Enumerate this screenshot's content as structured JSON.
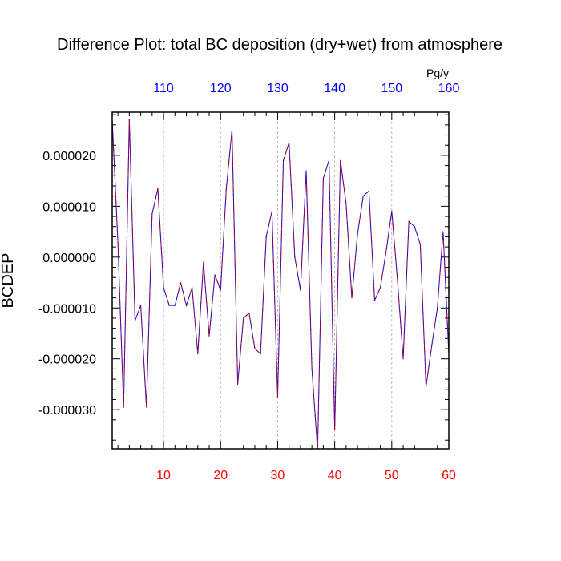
{
  "chart_data": {
    "type": "line",
    "title": "Difference Plot: total BC deposition (dry+wet) from atmosphere",
    "ylabel": "BCDEP",
    "xlabel": "",
    "top_axis_unit": "Pg/y",
    "x_ticks": [
      "10",
      "20",
      "30",
      "40",
      "50",
      "60"
    ],
    "top_ticks": [
      "110",
      "120",
      "130",
      "140",
      "150",
      "160"
    ],
    "y_ticks": [
      "0.000020",
      "0.000010",
      "0.000000",
      "-0.000010",
      "-0.000020",
      "-0.000030"
    ],
    "xlim": [
      1,
      60
    ],
    "top_xlim": [
      101,
      160
    ],
    "ylim": [
      -3.77e-05,
      2.85e-05
    ],
    "grid": "vertical dashed at major x ticks",
    "series": [
      {
        "x": [
          1,
          2,
          3,
          4,
          5,
          6,
          7,
          8,
          9,
          10,
          11,
          12,
          13,
          14,
          15,
          16,
          17,
          18,
          19,
          20,
          21,
          22,
          23,
          24,
          25,
          26,
          27,
          28,
          29,
          30,
          31,
          32,
          33,
          34,
          35,
          36,
          37,
          38,
          39,
          40,
          41,
          42,
          43,
          44,
          45,
          46,
          47,
          48,
          49,
          50,
          51,
          52,
          53,
          54,
          55,
          56,
          57,
          58,
          59,
          60
        ],
        "y": [
          2.7e-05,
          2.8e-06,
          -2.95e-05,
          2.7e-05,
          -1.25e-05,
          -9.5e-06,
          -2.95e-05,
          8.5e-06,
          1.35e-05,
          -6e-06,
          -9.5e-06,
          -9.5e-06,
          -5e-06,
          -9.5e-06,
          -6e-06,
          -1.9e-05,
          -1e-06,
          -1.55e-05,
          -3.5e-06,
          -6.5e-06,
          1.35e-05,
          2.5e-05,
          -2.5e-05,
          -1.2e-05,
          -1.1e-05,
          -1.8e-05,
          -1.9e-05,
          4e-06,
          9e-06,
          -2.75e-05,
          1.9e-05,
          2.25e-05,
          0,
          -6.5e-06,
          1.7e-05,
          -2.2e-05,
          -3.8e-05,
          1.55e-05,
          1.9e-05,
          -3.4e-05,
          1.9e-05,
          1.05e-05,
          -8e-06,
          4.5e-06,
          1.2e-05,
          1.3e-05,
          -8.5e-06,
          -6e-06,
          1e-06,
          9e-06,
          -4.5e-06,
          -2e-05,
          7e-06,
          6e-06,
          2.5e-06,
          -2.55e-05,
          -1.75e-05,
          -1e-05,
          5e-06,
          -1.9e-05
        ],
        "colors": [
          "#0000ff",
          "#cc0000"
        ]
      }
    ],
    "colors": {
      "bottom_tick_labels": "#ff0000",
      "top_tick_labels": "#0000ff",
      "left_tick_labels": "#000000"
    }
  }
}
